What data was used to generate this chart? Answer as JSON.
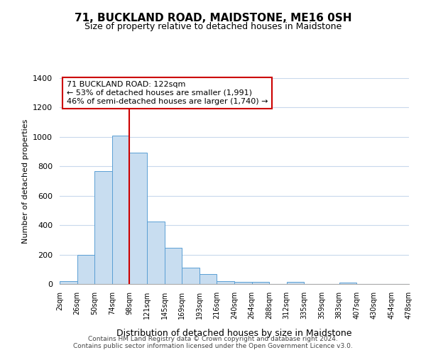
{
  "title": "71, BUCKLAND ROAD, MAIDSTONE, ME16 0SH",
  "subtitle": "Size of property relative to detached houses in Maidstone",
  "xlabel": "Distribution of detached houses by size in Maidstone",
  "ylabel": "Number of detached properties",
  "bin_labels": [
    "2sqm",
    "26sqm",
    "50sqm",
    "74sqm",
    "98sqm",
    "121sqm",
    "145sqm",
    "169sqm",
    "193sqm",
    "216sqm",
    "240sqm",
    "264sqm",
    "288sqm",
    "312sqm",
    "335sqm",
    "359sqm",
    "383sqm",
    "407sqm",
    "430sqm",
    "454sqm",
    "478sqm"
  ],
  "bar_heights": [
    20,
    200,
    770,
    1010,
    895,
    425,
    245,
    110,
    70,
    20,
    15,
    15,
    0,
    15,
    0,
    0,
    10,
    0,
    0,
    0
  ],
  "bar_color": "#c8ddf0",
  "bar_edge_color": "#5a9fd4",
  "vline_x_idx": 4,
  "vline_color": "#cc0000",
  "annotation_text": "71 BUCKLAND ROAD: 122sqm\n← 53% of detached houses are smaller (1,991)\n46% of semi-detached houses are larger (1,740) →",
  "annotation_box_edgecolor": "#cc0000",
  "footer_text": "Contains HM Land Registry data © Crown copyright and database right 2024.\nContains public sector information licensed under the Open Government Licence v3.0.",
  "ylim": [
    0,
    1400
  ],
  "yticks": [
    0,
    200,
    400,
    600,
    800,
    1000,
    1200,
    1400
  ],
  "background_color": "#ffffff",
  "grid_color": "#c8d8ec"
}
